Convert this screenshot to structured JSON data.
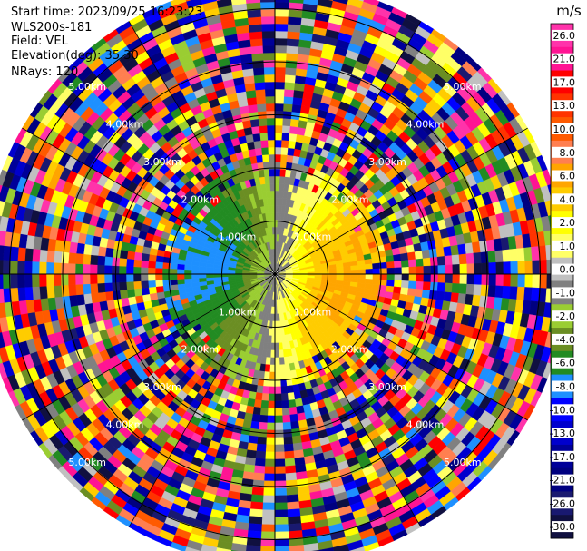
{
  "header": {
    "start_time": "Start time: 2023/09/25 16:23:23",
    "instrument": "WLS200s-181",
    "field": "Field: VEL",
    "elevation": "Elevation(deg): 35.30",
    "nrays": "NRays: 120"
  },
  "chart_data": {
    "type": "heatmap",
    "projection": "polar-ppi",
    "field": "VEL",
    "n_rays": 120,
    "elevation_deg": 35.3,
    "max_range_km": 5.5,
    "range_rings_km": [
      1,
      2,
      3,
      4,
      5
    ],
    "ring_labels": [
      "1.00km",
      "2.00km",
      "3.00km",
      "4.00km",
      "5.00km"
    ],
    "colorbar": {
      "unit": "m/s",
      "ticks": [
        "26.0",
        "21.0",
        "17.0",
        "13.0",
        "10.0",
        "8.0",
        "6.0",
        "4.0",
        "2.0",
        "1.0",
        "0.0",
        "-1.0",
        "-2.0",
        "-4.0",
        "-6.0",
        "-8.0",
        "-10.0",
        "-13.0",
        "-17.0",
        "-21.0",
        "-26.0",
        "-30.0"
      ],
      "colors": [
        "#ff33aa",
        "#ff1493",
        "#ff0000",
        "#ff3300",
        "#ff5a00",
        "#ff7f50",
        "#ffa500",
        "#ffcc00",
        "#ffff00",
        "#ffff66",
        "#c0c0c0",
        "#808080",
        "#9acd32",
        "#6b8e23",
        "#228b22",
        "#1e90ff",
        "#0000ff",
        "#0000cd",
        "#000099",
        "#000080",
        "#191970",
        "#101040"
      ]
    }
  }
}
